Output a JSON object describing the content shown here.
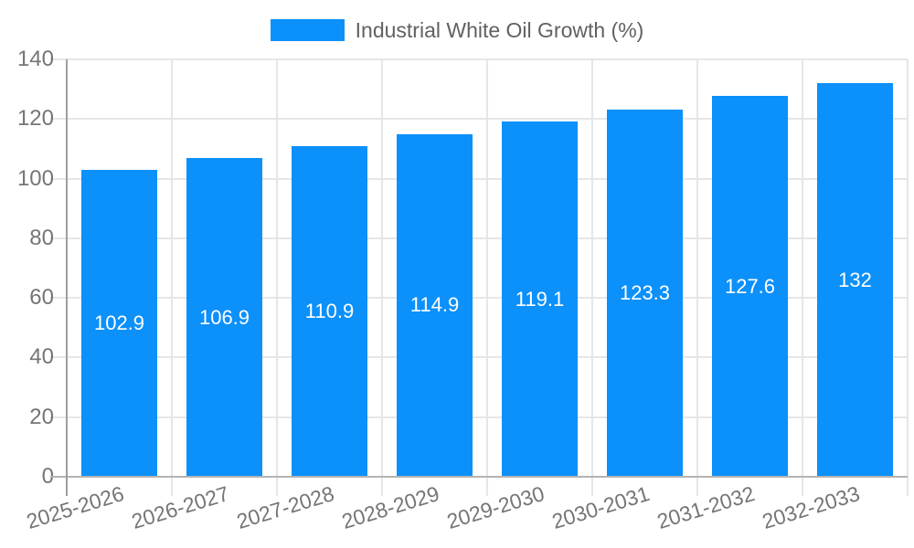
{
  "chart_data": {
    "type": "bar",
    "title": "",
    "legend": "Industrial White Oil Growth (%)",
    "legend_position": "top-center",
    "categories": [
      "2025-2026",
      "2026-2027",
      "2027-2028",
      "2028-2029",
      "2029-2030",
      "2030-2031",
      "2031-2032",
      "2032-2033"
    ],
    "values": [
      102.9,
      106.9,
      110.9,
      114.9,
      119.1,
      123.3,
      127.6,
      132
    ],
    "value_labels": [
      "102.9",
      "106.9",
      "110.9",
      "114.9",
      "119.1",
      "123.3",
      "127.6",
      "132"
    ],
    "xlabel": "",
    "ylabel": "",
    "ylim": [
      0,
      140
    ],
    "yticks": [
      0,
      20,
      40,
      60,
      80,
      100,
      120,
      140
    ],
    "grid": "on",
    "bar_color": "#0c90fa",
    "value_label_color": "#ffffff",
    "axis_text_color": "#757575",
    "legend_text_color": "#616161",
    "gridline_color": "#e6e6e6"
  }
}
